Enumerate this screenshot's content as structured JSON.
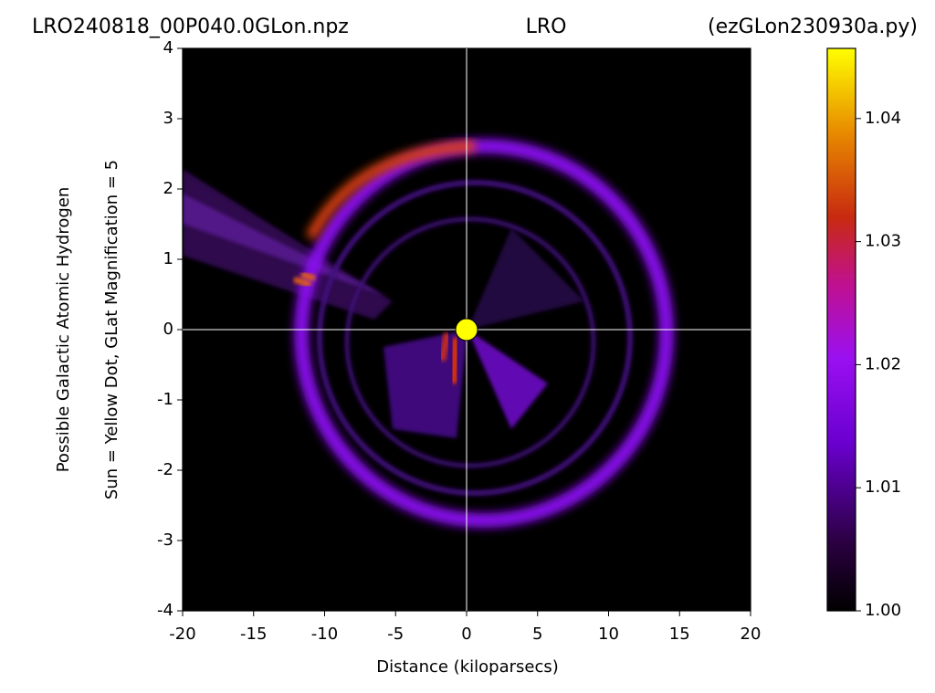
{
  "chart_data": {
    "type": "heatmap",
    "title_left": "LRO240818_00P040.0GLon.npz",
    "title_center": "LRO",
    "title_right": "(ezGLon230930a.py)",
    "xlabel": "Distance (kiloparsecs)",
    "ylabel": [
      "Possible Galactic Atomic Hydrogen",
      "Sun = Yellow Dot, GLat Magnification = 5"
    ],
    "xlim": [
      -20,
      20
    ],
    "xticks": [
      -20,
      -15,
      -10,
      -5,
      0,
      5,
      10,
      15,
      20
    ],
    "ylim": [
      -4,
      4
    ],
    "yticks": [
      -4,
      -3,
      -2,
      -1,
      0,
      1,
      2,
      3,
      4
    ],
    "sun": {
      "x": 0,
      "y": 0,
      "color": "#ffff00"
    },
    "colorbar": {
      "lim": [
        1.0,
        1.0457
      ],
      "ticks": [
        {
          "value": 1.0,
          "label": "1.00"
        },
        1.01,
        1.02,
        1.03,
        1.04
      ]
    }
  }
}
